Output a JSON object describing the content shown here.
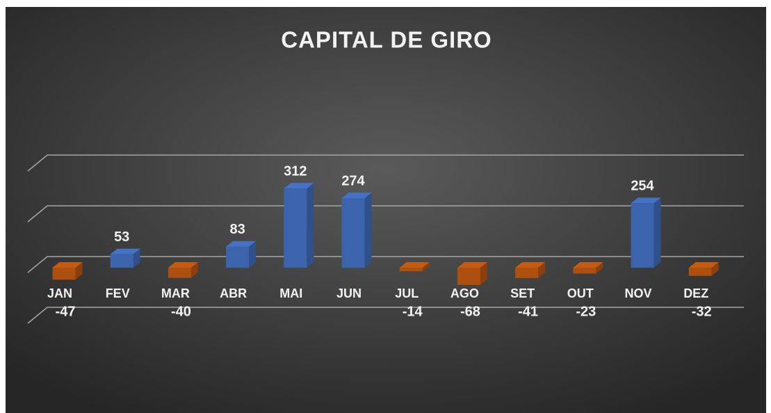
{
  "chart_data": {
    "type": "bar3d",
    "title": "CAPITAL DE GIRO",
    "categories": [
      "JAN",
      "FEV",
      "MAR",
      "ABR",
      "MAI",
      "JUN",
      "JUL",
      "AGO",
      "SET",
      "OUT",
      "NOV",
      "DEZ"
    ],
    "values": [
      -47,
      53,
      -40,
      83,
      312,
      274,
      -14,
      -68,
      -41,
      -23,
      254,
      -32
    ],
    "positive_color": "#4472c4",
    "negative_color": "#c55a11",
    "ylim": [
      -200,
      400
    ],
    "yticks": [
      -200,
      0,
      200,
      400
    ],
    "grid": true
  }
}
